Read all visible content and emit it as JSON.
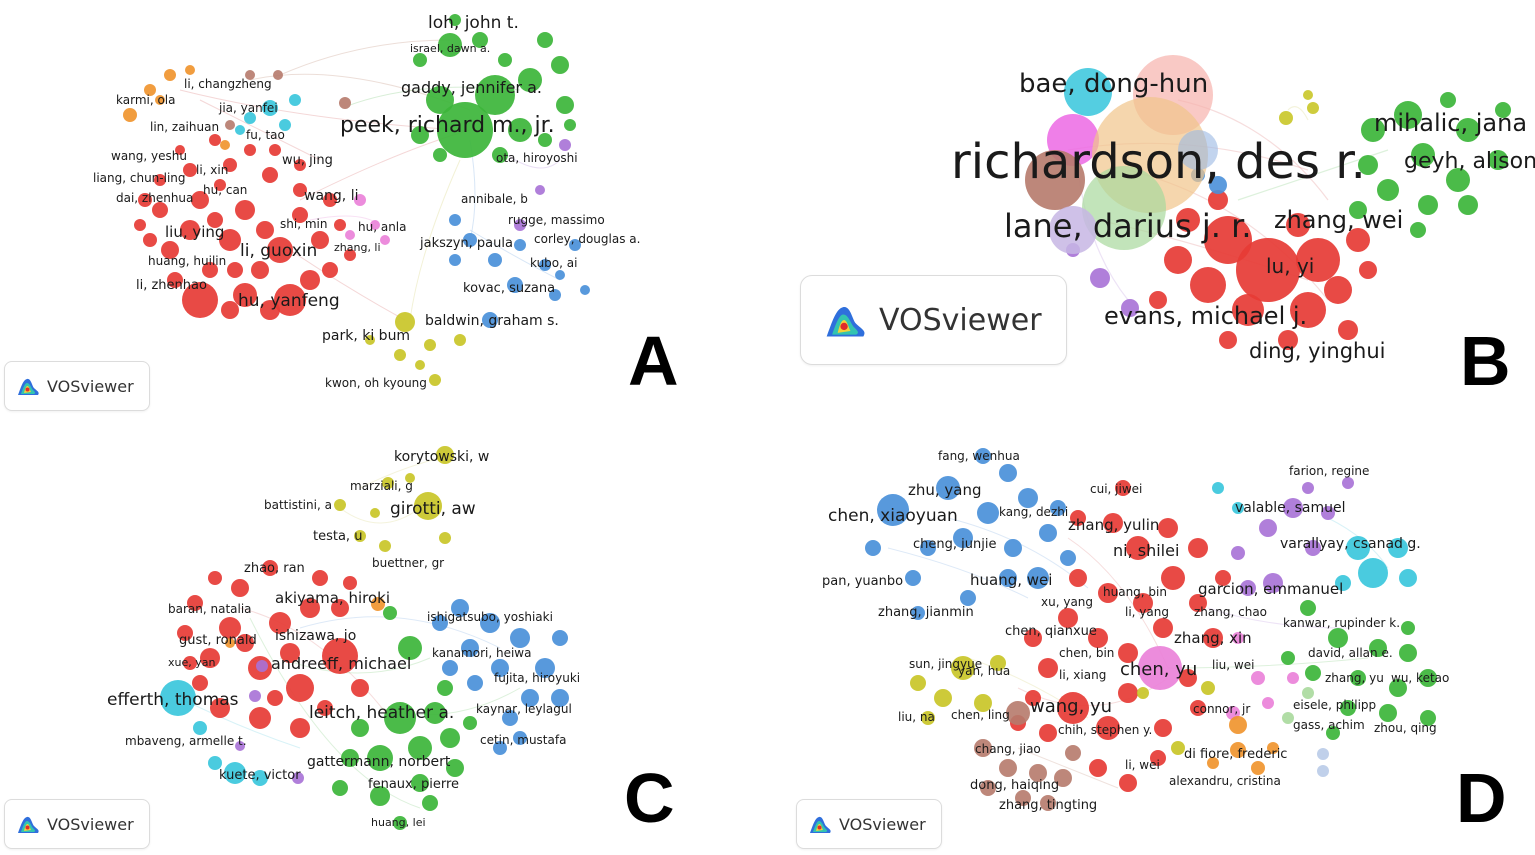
{
  "panels": [
    {
      "id": "A",
      "letter": "A",
      "logo_text": "VOSviewer",
      "clusters": [
        {
          "color": "#e63b35",
          "labels": [
            "li, guoxin",
            "liu, ying",
            "hu, yanfeng",
            "li, zhenhao",
            "huang, huilin",
            "dai, zhenhua",
            "liang, chun-ling",
            "wang, yeshu",
            "lin, zaihuan",
            "hu, can",
            "li, xin",
            "shi, min",
            "wu, jing"
          ]
        },
        {
          "color": "#3cb53a",
          "labels": [
            "peek, richard m., jr.",
            "loh, john t.",
            "gaddy, jennifer a.",
            "israel, dawn a."
          ]
        },
        {
          "color": "#4a90d9",
          "labels": [
            "jakszyn, paula",
            "corley, douglas a.",
            "kubo, ai",
            "kovac, suzana",
            "baldwin, graham s."
          ]
        },
        {
          "color": "#c9c628",
          "labels": [
            "park, ki bum",
            "kwon, oh kyoung"
          ]
        },
        {
          "color": "#a771d6",
          "labels": [
            "ota, hiroyoshi",
            "annibale, b",
            "rugge, massimo"
          ]
        },
        {
          "color": "#36c5dc",
          "labels": [
            "jia, yanfei",
            "fu, tao"
          ]
        },
        {
          "color": "#f0922a",
          "labels": [
            "karmi, ola"
          ]
        },
        {
          "color": "#b67a6b",
          "labels": [
            "li, changzheng"
          ]
        },
        {
          "color": "#ea7fd8",
          "labels": [
            "wang, li",
            "hu, anla",
            "zhang, li"
          ]
        }
      ]
    },
    {
      "id": "B",
      "letter": "B",
      "logo_text": "VOSviewer",
      "clusters": [
        {
          "color": "#e63b35",
          "labels": [
            "zhang, wei",
            "lu, yi",
            "evans, michael j.",
            "ding, yinghui"
          ]
        },
        {
          "color": "#3cb53a",
          "labels": [
            "mihalic, jana",
            "geyh, alison"
          ]
        },
        {
          "color": "#36c5dc",
          "labels": [
            "bae, dong-hun"
          ]
        },
        {
          "color": "#f1c58a",
          "labels": [
            "richardson, des r."
          ]
        },
        {
          "color": "#b89ad6",
          "labels": [
            "lane, darius j. r."
          ]
        }
      ]
    },
    {
      "id": "C",
      "letter": "C",
      "logo_text": "VOSviewer",
      "clusters": [
        {
          "color": "#c9c628",
          "labels": [
            "korytowski, w",
            "marziali, g",
            "battistini, a",
            "girotti, aw",
            "testa, u",
            "buettner, gr"
          ]
        },
        {
          "color": "#e63b35",
          "labels": [
            "zhao, ran",
            "akiyama, hiroki",
            "baran, natalia",
            "gust, ronald",
            "ishizawa, jo",
            "xue, yan",
            "andreeff, michael"
          ]
        },
        {
          "color": "#4a90d9",
          "labels": [
            "ishigatsubo, yoshiaki",
            "kanamori, heiwa",
            "fujita, hiroyuki",
            "kaynar, leylagul",
            "cetin, mustafa"
          ]
        },
        {
          "color": "#3cb53a",
          "labels": [
            "leitch, heather a.",
            "gattermann, norbert",
            "fenaux, pierre",
            "huang, lei"
          ]
        },
        {
          "color": "#36c5dc",
          "labels": [
            "efferth, thomas",
            "mbaveng, armelle t.",
            "kuete, victor"
          ]
        }
      ]
    },
    {
      "id": "D",
      "letter": "D",
      "logo_text": "VOSviewer",
      "clusters": [
        {
          "color": "#4a90d9",
          "labels": [
            "fang, wenhua",
            "zhu, yang",
            "chen, xiaoyuan",
            "kang, dezhi",
            "cheng, junjie",
            "pan, yuanbo",
            "huang, wei",
            "zhang, jianmin"
          ]
        },
        {
          "color": "#e63b35",
          "labels": [
            "cui, jiwei",
            "zhang, yulin",
            "ni, shilei",
            "huang, bin",
            "xu, yang",
            "li, yang",
            "chen, qianxue",
            "chen, bin",
            "li, xiang",
            "wang, yu",
            "chih, stephen y.",
            "li, wei",
            "zhang, xin",
            "zhang, chao"
          ]
        },
        {
          "color": "#a771d6",
          "labels": [
            "farion, regine",
            "valable, samuel",
            "garcion, emmanuel"
          ]
        },
        {
          "color": "#36c5dc",
          "labels": [
            "varallyay, csanad g."
          ]
        },
        {
          "color": "#3cb53a",
          "labels": [
            "kanwar, rupinder k.",
            "david, allan e.",
            "zhang, yu",
            "wu, ketao",
            "eisele, philipp",
            "gass, achim",
            "zhou, qing"
          ]
        },
        {
          "color": "#c9c628",
          "labels": [
            "sun, jingyue",
            "yan, hua",
            "liu, na",
            "chen, ling"
          ]
        },
        {
          "color": "#ea7fd8",
          "labels": [
            "chen, yu",
            "liu, wei",
            "connor, jr"
          ]
        },
        {
          "color": "#b67a6b",
          "labels": [
            "chang, jiao",
            "dong, haiqing",
            "zhang, tingting"
          ]
        },
        {
          "color": "#f0922a",
          "labels": [
            "di fiore, frederic",
            "alexandru, cristina"
          ]
        }
      ]
    }
  ]
}
